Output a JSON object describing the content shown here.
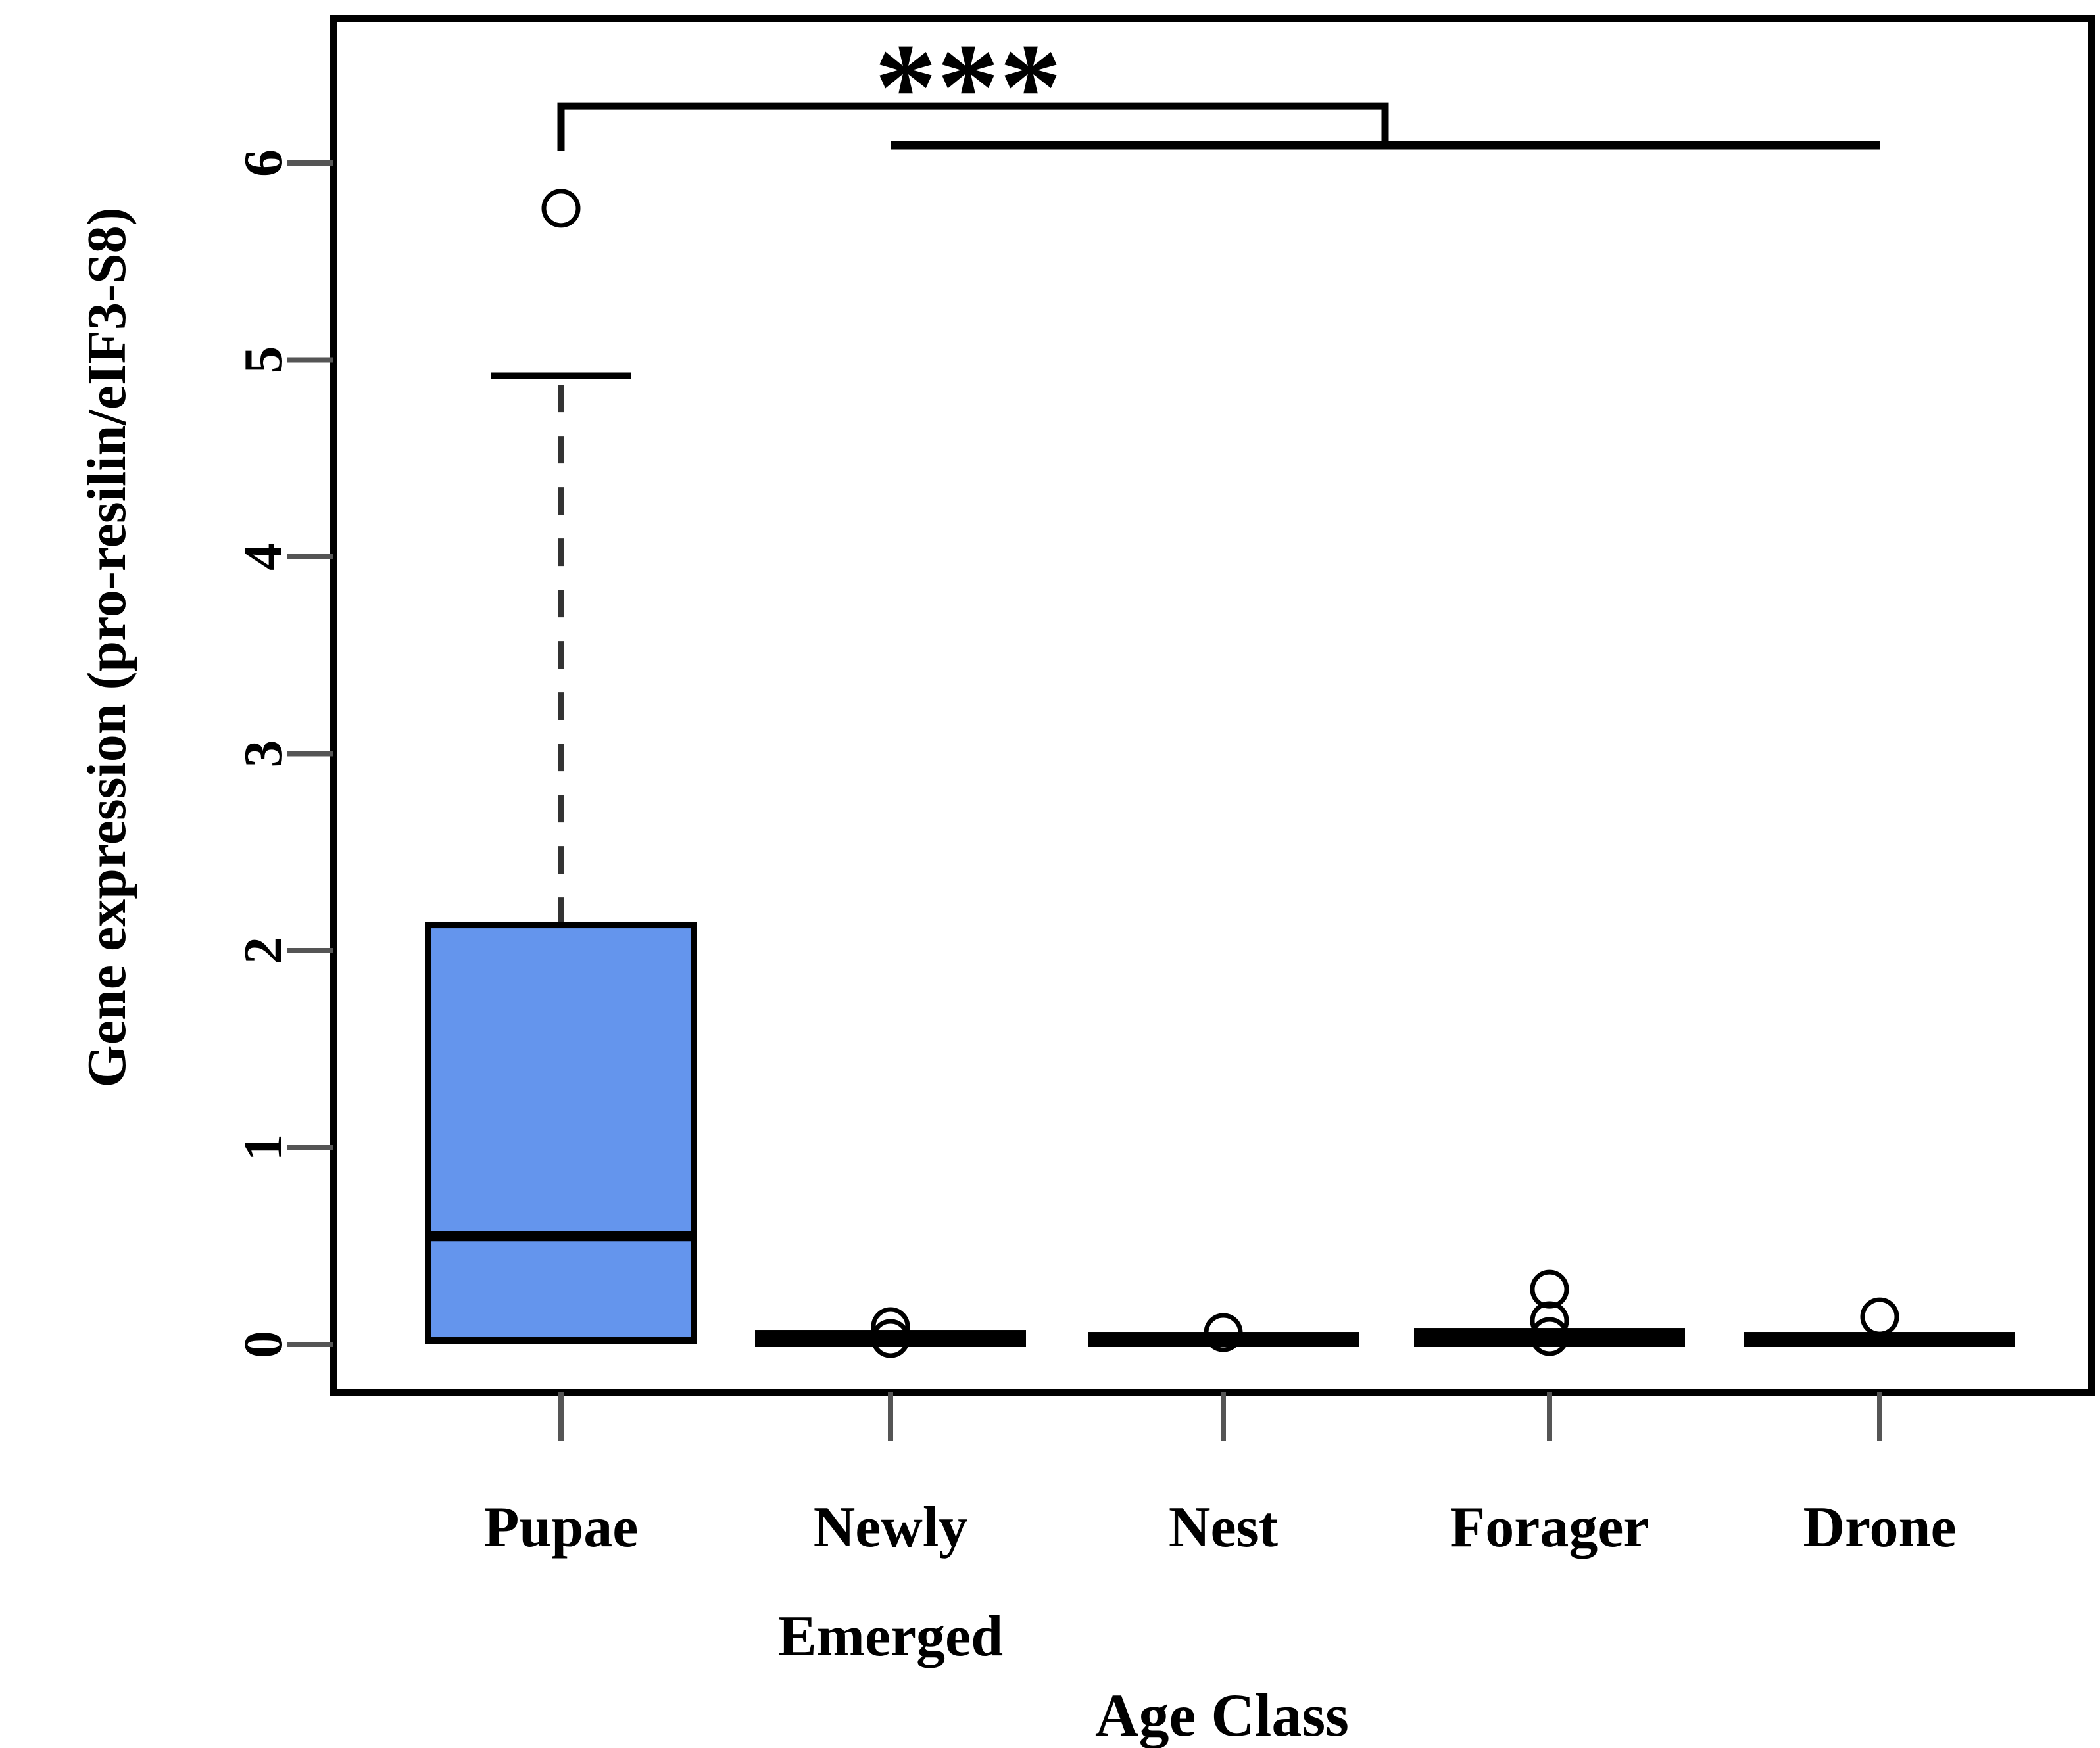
{
  "chart_data": {
    "type": "boxplot",
    "title": "",
    "xlabel": "Age Class",
    "ylabel": "Gene expression (pro-resilin/eIF3-S8)",
    "ylim": [
      -0.25,
      6.73
    ],
    "yticks": [
      0,
      1,
      2,
      3,
      4,
      5,
      6
    ],
    "grid": false,
    "legend": "none",
    "categories": [
      "Pupae",
      "Newly Emerged",
      "Nest",
      "Forager",
      "Drone"
    ],
    "category_label_lines": [
      [
        "Pupae"
      ],
      [
        "Newly",
        "Emerged"
      ],
      [
        "Nest"
      ],
      [
        "Forager"
      ],
      [
        "Drone"
      ]
    ],
    "series": [
      {
        "name": "Pupae",
        "min": 0,
        "q1": 0.02,
        "median": 0.55,
        "q3": 2.13,
        "max": 4.92,
        "outliers": [
          5.77
        ],
        "box_fill": "#6495ED"
      },
      {
        "name": "Newly Emerged",
        "min": 0,
        "q1": 0.0,
        "median": 0.02,
        "q3": 0.06,
        "max": 0.06,
        "outliers": [
          0.09,
          0.03
        ],
        "box_fill": "#FFFFFF"
      },
      {
        "name": "Nest",
        "min": 0,
        "q1": 0.0,
        "median": 0.02,
        "q3": 0.05,
        "max": 0.05,
        "outliers": [
          0.06
        ],
        "box_fill": "#FFFFFF"
      },
      {
        "name": "Forager",
        "min": 0,
        "q1": 0.0,
        "median": 0.03,
        "q3": 0.07,
        "max": 0.07,
        "outliers": [
          0.28,
          0.12,
          0.04
        ],
        "box_fill": "#FFFFFF"
      },
      {
        "name": "Drone",
        "min": 0,
        "q1": 0.0,
        "median": 0.02,
        "q3": 0.05,
        "max": 0.05,
        "outliers": [
          0.14
        ],
        "box_fill": "#FFFFFF"
      }
    ],
    "significance": {
      "label": "***",
      "group_a": "Pupae",
      "group_b": [
        "Newly Emerged",
        "Nest",
        "Forager",
        "Drone"
      ],
      "bar_y": 6.29,
      "tip_y": 6.06,
      "group_line_y": 6.09
    },
    "colors": {
      "box_blue": "#6495ED",
      "line": "#000000",
      "tick": "#555555",
      "whisker_dash": "#333333"
    }
  }
}
